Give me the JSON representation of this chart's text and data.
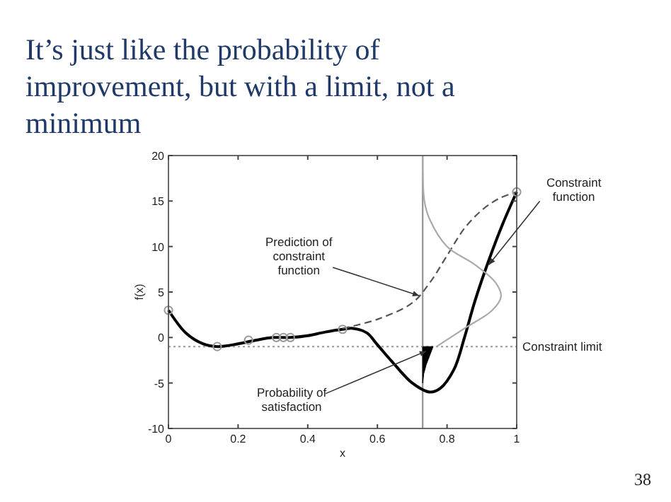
{
  "chart_data": {
    "type": "line",
    "title": "It’s just like the probability of improvement, but with a limit, not a minimum",
    "xlabel": "x",
    "ylabel": "f(x)",
    "xlim": [
      0,
      1
    ],
    "ylim": [
      -10,
      20
    ],
    "xticks": [
      0,
      0.2,
      0.4,
      0.6,
      0.8,
      1
    ],
    "yticks": [
      -10,
      -5,
      0,
      5,
      10,
      15,
      20
    ],
    "series": [
      {
        "color": "#000000",
        "x": [
          0,
          0.05,
          0.1,
          0.14,
          0.2,
          0.25,
          0.3,
          0.35,
          0.4,
          0.45,
          0.5,
          0.53,
          0.57,
          0.6,
          0.65,
          0.7,
          0.75,
          0.78,
          0.82,
          0.85,
          0.88,
          0.92,
          0.96,
          1
        ],
        "values": [
          3,
          0.5,
          -0.7,
          -1,
          -0.7,
          -0.3,
          0,
          0,
          0.2,
          0.6,
          0.9,
          1,
          0.5,
          -0.8,
          -3,
          -5,
          -6,
          -5.6,
          -3.5,
          0,
          4,
          8.5,
          12.5,
          16
        ]
      },
      {
        "color": "#555555",
        "line_style": "dashed",
        "x": [
          0.5,
          0.6,
          0.7,
          0.75,
          0.8,
          0.85,
          0.9,
          0.95,
          1
        ],
        "values": [
          1,
          2,
          3.8,
          6,
          9,
          12,
          14,
          15.3,
          16
        ]
      },
      {
        "type": "line",
        "color": "#aaaaaa",
        "x": [
          0.73,
          0.735,
          0.75,
          0.8,
          0.88,
          0.94,
          0.955,
          0.93,
          0.85,
          0.77
        ],
        "values": [
          20,
          15,
          13,
          10,
          8,
          6,
          4.5,
          3,
          1,
          -1
        ]
      },
      {
        "type": "area",
        "color": "#000000",
        "x": [
          0.73,
          0.76,
          0.75,
          0.74,
          0.733,
          0.73
        ],
        "values": [
          -1,
          -1,
          -2,
          -3,
          -4,
          -5
        ]
      },
      {
        "type": "scatter",
        "color": "#999999",
        "marker": "circle",
        "x": [
          0,
          0.14,
          0.23,
          0.31,
          0.33,
          0.35,
          0.5,
          1
        ],
        "values": [
          3,
          -1,
          -0.3,
          0,
          0,
          0,
          0.9,
          16
        ]
      }
    ],
    "ref_lines": [
      {
        "axis": "y",
        "value": -1,
        "label": "Constraint limit",
        "color": "#999999",
        "line_style": "dotted"
      },
      {
        "axis": "x",
        "value": 0.73,
        "color": "#999999",
        "line_style": "solid"
      }
    ],
    "annotations": [
      {
        "text": "Prediction of constraint function",
        "x": 0.72,
        "y": 4.6
      },
      {
        "text": "Constraint function",
        "x": 0.92,
        "y": 8
      },
      {
        "text": "Probability of satisfaction",
        "x": 0.74,
        "y": -1.5
      },
      "38"
    ]
  }
}
